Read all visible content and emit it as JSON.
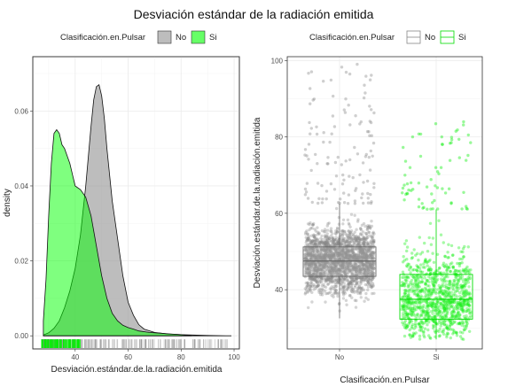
{
  "title": "Desviación estándar de la radiación emitida",
  "colors": {
    "no_fill": "#999999",
    "si_fill": "#00ff00",
    "no_point": "#888888",
    "si_point": "#00ee00",
    "panel": "#ffffff",
    "grid": "#ebebeb"
  },
  "chart_data": [
    {
      "type": "area",
      "chart_kind": "density",
      "xlabel": "Desviación.estándar.de.la.radiación.emitida",
      "ylabel": "density",
      "xlim": [
        24,
        102
      ],
      "ylim": [
        -0.0035,
        0.0745
      ],
      "x_ticks": [
        40,
        60,
        80,
        100
      ],
      "y_ticks": [
        0.0,
        0.02,
        0.04,
        0.06
      ],
      "y_tick_labels": [
        "0.00",
        "0.02",
        "0.04",
        "0.06"
      ],
      "legend": {
        "title": "Clasificación.en.Pulsar",
        "position": "top",
        "entries": [
          "No",
          "Si"
        ]
      },
      "series": [
        {
          "name": "No",
          "x": [
            28,
            30,
            32,
            34,
            36,
            38,
            40,
            42,
            44,
            46,
            47,
            48,
            49,
            50,
            51,
            52,
            53,
            54,
            56,
            58,
            60,
            62,
            64,
            66,
            70,
            75,
            80,
            90,
            99
          ],
          "y": [
            0.0002,
            0.0008,
            0.002,
            0.004,
            0.0075,
            0.012,
            0.018,
            0.027,
            0.04,
            0.056,
            0.063,
            0.0665,
            0.067,
            0.064,
            0.058,
            0.05,
            0.043,
            0.036,
            0.026,
            0.016,
            0.009,
            0.0055,
            0.003,
            0.0018,
            0.0009,
            0.0005,
            0.0003,
            0.0001,
            0.0
          ]
        },
        {
          "name": "Si",
          "x": [
            28,
            29,
            30,
            31,
            32,
            33,
            34,
            35,
            36,
            37,
            38,
            39,
            40,
            42,
            44,
            46,
            48,
            50,
            52,
            54,
            56,
            58,
            60,
            62,
            64,
            68,
            72,
            76,
            80,
            84
          ],
          "y": [
            0.004,
            0.015,
            0.032,
            0.046,
            0.054,
            0.055,
            0.054,
            0.051,
            0.05,
            0.048,
            0.046,
            0.043,
            0.04,
            0.039,
            0.037,
            0.032,
            0.024,
            0.016,
            0.01,
            0.006,
            0.004,
            0.0028,
            0.0022,
            0.0018,
            0.0013,
            0.0009,
            0.0007,
            0.0005,
            0.0003,
            0.0
          ]
        }
      ],
      "rug": {
        "Si_range": [
          27,
          42
        ],
        "No_range": [
          28,
          98
        ]
      }
    },
    {
      "type": "scatter",
      "chart_kind": "boxplot_with_jitter",
      "xlabel": "Clasificación.en.Pulsar",
      "ylabel": "Desviación.estándar.de.la.radiación.emitida",
      "categories": [
        "No",
        "Si"
      ],
      "ylim": [
        24.5,
        101
      ],
      "y_ticks": [
        40,
        60,
        80,
        100
      ],
      "legend": {
        "title": "Clasificación.en.Pulsar",
        "position": "top",
        "entries": [
          "No",
          "Si"
        ]
      },
      "boxes": [
        {
          "name": "No",
          "lower_whisker": 32.5,
          "q1": 43.5,
          "median": 47.5,
          "q3": 51.2,
          "upper_whisker": 62.5,
          "outlier_range": [
            62.5,
            99
          ]
        },
        {
          "name": "Si",
          "lower_whisker": 27,
          "q1": 32.3,
          "median": 37.5,
          "q3": 44.0,
          "upper_whisker": 61,
          "outlier_range": [
            61,
            84
          ]
        }
      ]
    }
  ]
}
